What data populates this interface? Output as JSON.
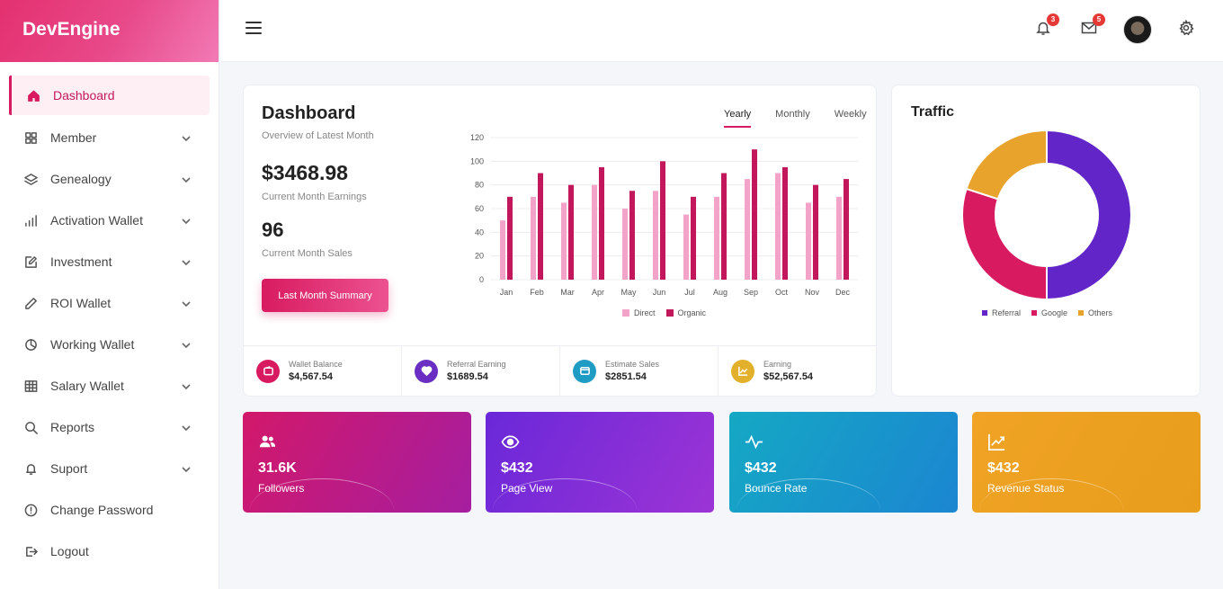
{
  "brand": "DevEngine",
  "sidebar": {
    "items": [
      {
        "label": "Dashboard",
        "icon": "home-icon"
      },
      {
        "label": "Member",
        "icon": "grid-icon"
      },
      {
        "label": "Genealogy",
        "icon": "layers-icon"
      },
      {
        "label": "Activation Wallet",
        "icon": "bar-chart-icon"
      },
      {
        "label": "Investment",
        "icon": "edit-icon"
      },
      {
        "label": "ROI Wallet",
        "icon": "pencil-icon"
      },
      {
        "label": "Working Wallet",
        "icon": "pie-chart-icon"
      },
      {
        "label": "Salary Wallet",
        "icon": "table-icon"
      },
      {
        "label": "Reports",
        "icon": "search-icon"
      },
      {
        "label": "Suport",
        "icon": "bell-icon"
      },
      {
        "label": "Change Password",
        "icon": "alert-circle-icon"
      },
      {
        "label": "Logout",
        "icon": "logout-icon"
      }
    ]
  },
  "topbar": {
    "notification_count": "3",
    "message_count": "5"
  },
  "dashboard": {
    "title": "Dashboard",
    "subtitle": "Overview of Latest Month",
    "earnings": "$3468.98",
    "earnings_label": "Current Month Earnings",
    "sales": "96",
    "sales_label": "Current Month Sales",
    "button": "Last Month Summary",
    "tabs": [
      "Yearly",
      "Monthly",
      "Weekly"
    ]
  },
  "chart_data": [
    {
      "type": "bar",
      "categories": [
        "Jan",
        "Feb",
        "Mar",
        "Apr",
        "May",
        "Jun",
        "Jul",
        "Aug",
        "Sep",
        "Oct",
        "Nov",
        "Dec"
      ],
      "series": [
        {
          "name": "Direct",
          "color": "#f3a3c8",
          "values": [
            50,
            70,
            65,
            80,
            60,
            75,
            55,
            70,
            85,
            90,
            65,
            70
          ]
        },
        {
          "name": "Organic",
          "color": "#c2185b",
          "values": [
            70,
            90,
            80,
            95,
            75,
            100,
            70,
            90,
            110,
            95,
            80,
            85
          ]
        }
      ],
      "yticks": [
        0,
        20,
        40,
        60,
        80,
        100,
        120
      ],
      "ylim": [
        0,
        120
      ],
      "grid": true,
      "legend": "bottom"
    },
    {
      "type": "pie",
      "title": "Traffic",
      "labels": [
        "Referral",
        "Google",
        "Others"
      ],
      "values": [
        50,
        30,
        20
      ],
      "colors": [
        "#6226c8",
        "#d81b60",
        "#e8a32c"
      ],
      "legend": "bottom"
    }
  ],
  "stats": [
    {
      "label": "Wallet Balance",
      "value": "$4,567.54",
      "color": "#d81b60",
      "icon": "wallet-icon"
    },
    {
      "label": "Referral Earning",
      "value": "$1689.54",
      "color": "#6a2fc2",
      "icon": "heart-icon"
    },
    {
      "label": "Estimate Sales",
      "value": "$2851.54",
      "color": "#1f9cc4",
      "icon": "card-icon"
    },
    {
      "label": "Earning",
      "value": "$52,567.54",
      "color": "#e2b02a",
      "icon": "trend-icon"
    }
  ],
  "tiles": [
    {
      "value": "31.6K",
      "label": "Followers",
      "icon": "users-icon",
      "gradient": [
        "#d2186a",
        "#a51ea0"
      ]
    },
    {
      "value": "$432",
      "label": "Page View",
      "icon": "eye-icon",
      "gradient": [
        "#6a28d8",
        "#9c34d6"
      ]
    },
    {
      "value": "$432",
      "label": "Bounce Rate",
      "icon": "activity-icon",
      "gradient": [
        "#15a8c4",
        "#1b86d1"
      ]
    },
    {
      "value": "$432",
      "label": "Revenue Status",
      "icon": "trending-up-icon",
      "gradient": [
        "#f0a324",
        "#e89d1c"
      ]
    }
  ]
}
